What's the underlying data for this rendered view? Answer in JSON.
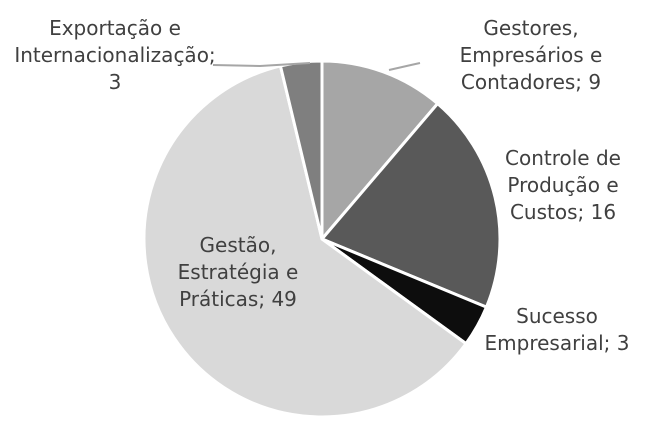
{
  "chart_data": {
    "type": "pie",
    "title": "",
    "start_angle_deg": 0,
    "direction": "clockwise",
    "slices": [
      {
        "name": "Gestores, Empresários e Contadores",
        "value": 9,
        "label_lines": [
          "Gestores,",
          "Empresários e",
          "Contadores; 9"
        ],
        "color": "#a6a6a6"
      },
      {
        "name": "Controle de Produção e Custos",
        "value": 16,
        "label_lines": [
          "Controle de",
          "Produção e",
          "Custos; 16"
        ],
        "color": "#595959"
      },
      {
        "name": "Sucesso Empresarial",
        "value": 3,
        "label_lines": [
          "Sucesso",
          "Empresarial; 3"
        ],
        "color": "#0d0d0d"
      },
      {
        "name": "Gestão, Estratégia e Práticas",
        "value": 49,
        "label_lines": [
          "Gestão,",
          "Estratégia e",
          "Práticas; 49"
        ],
        "color": "#d9d9d9"
      },
      {
        "name": "Exportação e Internacionalização",
        "value": 3,
        "label_lines": [
          "Exportação e",
          "Internacionalização;",
          "3"
        ],
        "color": "#7f7f7f"
      }
    ],
    "legend": "none",
    "slice_border_color": "#ffffff"
  }
}
